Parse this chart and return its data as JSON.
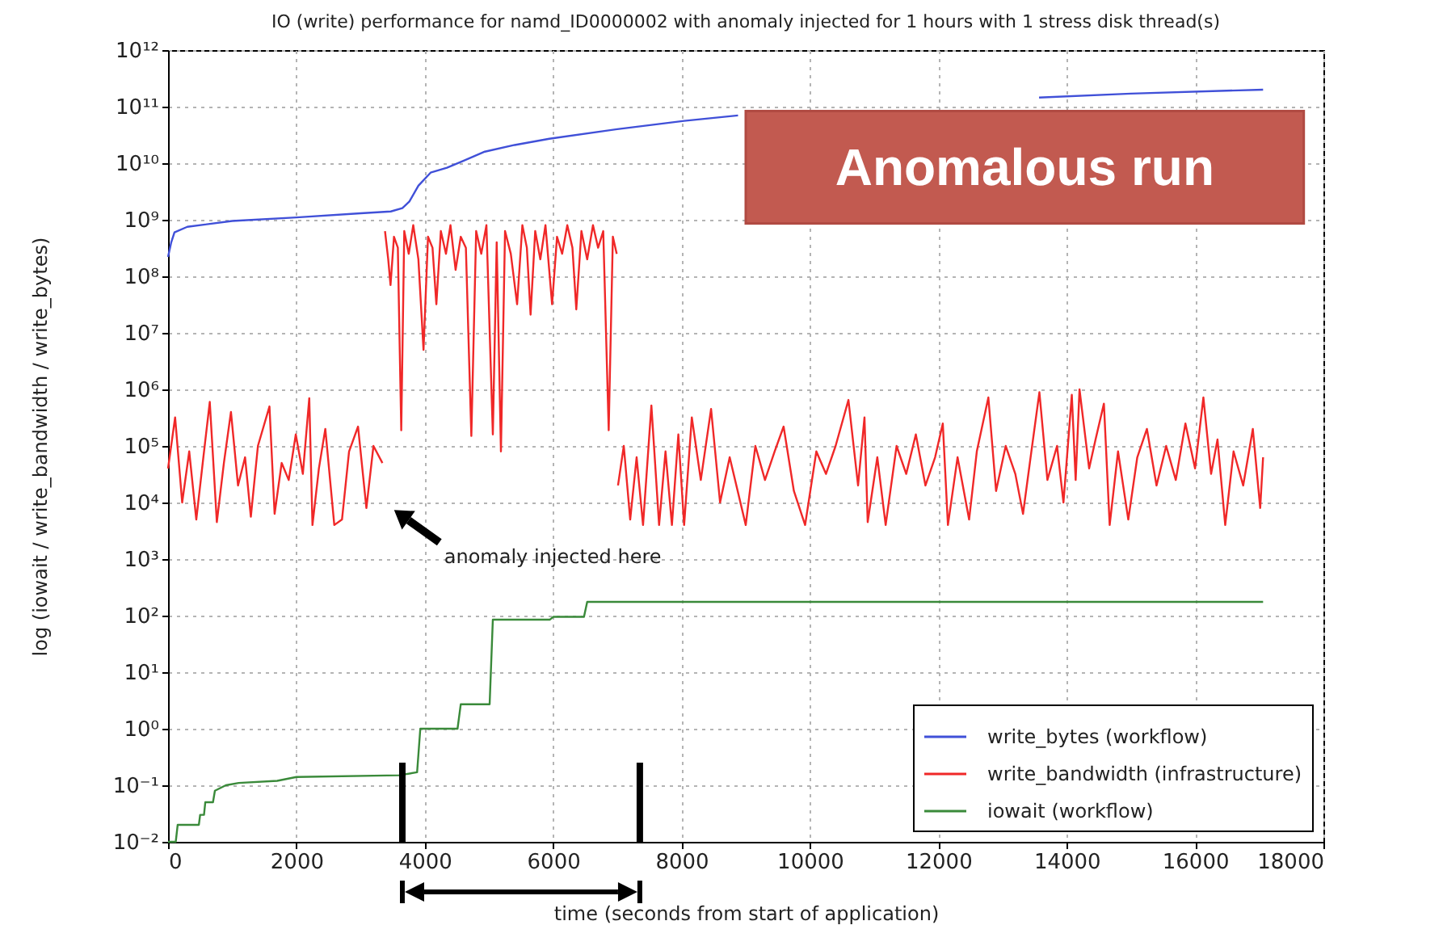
{
  "chart_data": {
    "type": "line",
    "title": "IO (write) performance for namd_ID0000002 with anomaly injected for 1 hours with 1 stress disk thread(s)",
    "xlabel": "time (seconds from start of application)",
    "ylabel": "log (iowait / write_bandwidth / write_bytes)",
    "xlim": [
      0,
      18000
    ],
    "xticks": [
      0,
      2000,
      4000,
      6000,
      8000,
      10000,
      12000,
      14000,
      16000,
      18000
    ],
    "ylim": [
      0.01,
      1000000000000
    ],
    "yticks": [
      {
        "value": 0.01,
        "label": "10⁻²"
      },
      {
        "value": 0.1,
        "label": "10⁻¹"
      },
      {
        "value": 1,
        "label": "10⁰"
      },
      {
        "value": 10,
        "label": "10¹"
      },
      {
        "value": 100,
        "label": "10²"
      },
      {
        "value": 1000,
        "label": "10³"
      },
      {
        "value": 10000,
        "label": "10⁴"
      },
      {
        "value": 100000,
        "label": "10⁵"
      },
      {
        "value": 1000000,
        "label": "10⁶"
      },
      {
        "value": 10000000,
        "label": "10⁷"
      },
      {
        "value": 100000000,
        "label": "10⁸"
      },
      {
        "value": 1000000000,
        "label": "10⁹"
      },
      {
        "value": 10000000000,
        "label": "10¹⁰"
      },
      {
        "value": 100000000000,
        "label": "10¹¹"
      },
      {
        "value": 1000000000000,
        "label": "10¹²"
      }
    ],
    "log": "y",
    "grid": true,
    "legend": "bottom right",
    "series": [
      {
        "name": "write_bytes (workflow)",
        "color": "#4050d8",
        "x": [
          0,
          50,
          100,
          300,
          1000,
          2000,
          3000,
          3470,
          3650,
          3760,
          3900,
          4090,
          4345,
          4600,
          4935,
          5400,
          5940,
          7000,
          8040,
          8880,
          11000,
          13570,
          15000,
          17060
        ],
        "values": [
          220000000,
          400000000,
          600000000,
          750000000,
          950000000,
          1100000000,
          1300000000,
          1400000000,
          1600000000,
          2100000000,
          4000000000,
          6800000000,
          8300000000,
          11000000000,
          16000000000,
          21000000000,
          27000000000,
          40000000000,
          56000000000,
          70000000000,
          null,
          145000000000,
          170000000000,
          200000000000
        ]
      },
      {
        "name": "write_bandwidth (infrastructure)",
        "color": "#f02828",
        "x": [
          0,
          110,
          220,
          330,
          440,
          550,
          650,
          760,
          870,
          980,
          1090,
          1200,
          1290,
          1400,
          1580,
          1660,
          1770,
          1880,
          1990,
          2100,
          2200,
          2250,
          2350,
          2450,
          2590,
          2710,
          2820,
          2960,
          3090,
          3200,
          3340,
          3360,
          3380,
          3430,
          3466,
          3520,
          3580,
          3633,
          3680,
          3750,
          3820,
          3900,
          3980,
          4050,
          4120,
          4180,
          4250,
          4330,
          4400,
          4480,
          4560,
          4640,
          4725,
          4800,
          4880,
          4960,
          5060,
          5120,
          5186,
          5250,
          5340,
          5438,
          5520,
          5590,
          5648,
          5720,
          5800,
          5880,
          5983,
          6060,
          6140,
          6220,
          6300,
          6360,
          6440,
          6530,
          6620,
          6700,
          6780,
          6865,
          6930,
          6990,
          7000,
          7010,
          7100,
          7200,
          7300,
          7400,
          7530,
          7650,
          7750,
          7850,
          7950,
          8040,
          8160,
          8300,
          8460,
          8600,
          8750,
          9000,
          9150,
          9300,
          9450,
          9590,
          9750,
          9925,
          10100,
          10250,
          10400,
          10600,
          10750,
          10850,
          10900,
          11050,
          11180,
          11350,
          11500,
          11650,
          11800,
          11950,
          12070,
          12150,
          12300,
          12480,
          12600,
          12780,
          12900,
          13050,
          13200,
          13320,
          13450,
          13575,
          13700,
          13850,
          13950,
          14080,
          14140,
          14200,
          14350,
          14450,
          14580,
          14670,
          14800,
          14960,
          15100,
          15250,
          15400,
          15550,
          15700,
          15850,
          16000,
          16130,
          16250,
          16350,
          16470,
          16600,
          16750,
          16900,
          17015,
          17060
        ],
        "values": [
          40000,
          320000,
          10000,
          80000,
          5000,
          63000,
          600000,
          4500,
          50000,
          400000,
          20000,
          63000,
          5600,
          100000,
          500000,
          6300,
          50000,
          25000,
          160000,
          32000,
          700000,
          4000,
          40000,
          200000,
          4000,
          5000,
          80000,
          220000,
          8000,
          100000,
          50000,
          null,
          630000000,
          200000000,
          70000000,
          500000000,
          320000000,
          190000,
          630000000,
          250000000,
          800000000,
          200000000,
          5000000,
          500000000,
          320000000,
          32000000,
          630000000,
          250000000,
          800000000,
          130000000,
          500000000,
          320000000,
          150000,
          630000000,
          250000000,
          800000000,
          160000,
          400000000,
          80000,
          630000000,
          250000000,
          32000000,
          800000000,
          320000000,
          21000000,
          630000000,
          200000000,
          800000000,
          32000000,
          500000000,
          250000000,
          800000000,
          320000000,
          26000000,
          630000000,
          200000000,
          800000000,
          320000000,
          630000000,
          190000,
          500000000,
          250000000,
          null,
          20000,
          100000,
          5000,
          63000,
          4000,
          520000,
          4000,
          80000,
          4000,
          160000,
          4000,
          320000,
          25000,
          450000,
          10000,
          63000,
          4000,
          100000,
          25000,
          80000,
          220000,
          16000,
          4000,
          80000,
          32000,
          100000,
          650000,
          20000,
          320000,
          4500,
          63000,
          4000,
          100000,
          32000,
          160000,
          20000,
          63000,
          250000,
          4000,
          63000,
          5000,
          80000,
          720000,
          16000,
          100000,
          32000,
          6300,
          80000,
          890000,
          25000,
          100000,
          10000,
          800000,
          25000,
          1000000,
          40000,
          130000,
          560000,
          4000,
          80000,
          5000,
          63000,
          200000,
          20000,
          100000,
          25000,
          250000,
          40000,
          720000,
          32000,
          130000,
          4000,
          80000,
          20000,
          200000,
          8000,
          63000
        ]
      },
      {
        "name": "iowait (workflow)",
        "color": "#3a8a3a",
        "x": [
          0,
          120,
          150,
          480,
          500,
          560,
          580,
          700,
          730,
          900,
          1100,
          1700,
          2000,
          3600,
          3880,
          3930,
          4510,
          4560,
          5010,
          5060,
          5950,
          6000,
          6480,
          6530,
          17060
        ],
        "values": [
          0.01,
          0.01,
          0.02,
          0.02,
          0.03,
          0.03,
          0.05,
          0.05,
          0.08,
          0.1,
          0.11,
          0.12,
          0.14,
          0.15,
          0.17,
          1,
          1,
          2.7,
          2.7,
          85,
          85,
          95,
          95,
          175,
          175
        ]
      }
    ],
    "ref_lines": [
      {
        "axis": "x",
        "value": 3650,
        "color": "#000000"
      },
      {
        "axis": "x",
        "value": 7350,
        "color": "#000000"
      }
    ],
    "annotations": [
      "Anomalous run",
      "anomaly injected here"
    ]
  }
}
